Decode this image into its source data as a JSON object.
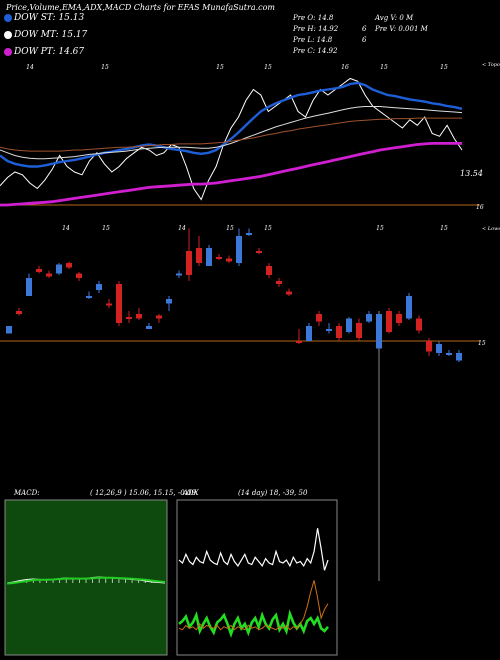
{
  "header": {
    "title": "Price,Volume,EMA,ADX,MACD Charts for EFAS MunafaSutra.com",
    "dow_st": "DOW ST: 15.13",
    "dow_mt": "DOW MT: 15.17",
    "dow_pt": "DOW PT: 14.67",
    "stats": {
      "pre_o": "Pre   O: 14.8",
      "pre_h": "Pre   H: 14.92",
      "pre_l": "Pre   L: 14.8",
      "pre_c": "Pre   C: 14.92",
      "avg_v": "Avg V: 0   M",
      "pre_v": "Pre   V: 0.001 M",
      "num_6a": "6",
      "num_6b": "6"
    }
  },
  "colors": {
    "background": "#000000",
    "ema_short": "#1e5fd8",
    "ema_long": "#d01fd0",
    "ema_mid": "#a0522d",
    "price_white": "#ffffff",
    "candle_up": "#3b78d8",
    "candle_down": "#d22222",
    "ref_line": "#b8651a",
    "macd_bg": "#0e4a0e",
    "macd_signal": "#22cc22",
    "adx_green": "#22dd22",
    "adx_orange": "#d07010",
    "adx_white": "#ffffff"
  },
  "chart_data": [
    {
      "type": "line",
      "name": "ema-panel",
      "top_tick_labels": [
        "14",
        "15",
        "15",
        "15",
        "16",
        "15",
        "15"
      ],
      "right_label_top": "< Topo",
      "ref_value_label": "16",
      "last_value_label": "13.54",
      "series": [
        {
          "name": "",
          "values": [
            0.35,
            0.5,
            0.6,
            0.55,
            0.4,
            0.3,
            0.45,
            0.65,
            0.9,
            0.7,
            0.6,
            0.55,
            0.8,
            0.95,
            0.75,
            0.6,
            0.7,
            0.85,
            0.95,
            1.05,
            1.0,
            0.9,
            0.95,
            1.1,
            1.05,
            0.7,
            0.3,
            0.1,
            0.45,
            0.7,
            1.1,
            1.4,
            1.6,
            1.9,
            2.1,
            2.0,
            1.7,
            1.8,
            1.9,
            2.0,
            1.7,
            1.6,
            1.9,
            2.1,
            2.0,
            2.1,
            2.2,
            2.3,
            2.25,
            2.0,
            1.8,
            1.7,
            1.6,
            1.5,
            1.4,
            1.55,
            1.45,
            1.6,
            1.3,
            1.25,
            1.45,
            1.2,
            1.0
          ]
        },
        {
          "name": "",
          "values": [
            0.9,
            0.8,
            0.75,
            0.72,
            0.7,
            0.7,
            0.72,
            0.75,
            0.78,
            0.8,
            0.82,
            0.85,
            0.88,
            0.92,
            0.95,
            0.97,
            1.0,
            1.02,
            1.05,
            1.08,
            1.1,
            1.08,
            1.05,
            1.02,
            1.0,
            0.98,
            0.95,
            0.93,
            0.95,
            1.0,
            1.1,
            1.2,
            1.32,
            1.45,
            1.58,
            1.7,
            1.78,
            1.85,
            1.9,
            1.95,
            2.0,
            2.02,
            2.05,
            2.08,
            2.1,
            2.12,
            2.15,
            2.2,
            2.22,
            2.18,
            2.1,
            2.05,
            2.0,
            1.98,
            1.95,
            1.92,
            1.9,
            1.88,
            1.85,
            1.83,
            1.8,
            1.78,
            1.75
          ]
        },
        {
          "name": "",
          "values": [
            1.0,
            0.95,
            0.9,
            0.87,
            0.85,
            0.84,
            0.84,
            0.85,
            0.86,
            0.87,
            0.88,
            0.9,
            0.92,
            0.93,
            0.95,
            0.96,
            0.97,
            0.98,
            1.0,
            1.02,
            1.03,
            1.04,
            1.05,
            1.05,
            1.05,
            1.05,
            1.04,
            1.03,
            1.03,
            1.05,
            1.08,
            1.12,
            1.17,
            1.22,
            1.27,
            1.32,
            1.37,
            1.42,
            1.46,
            1.5,
            1.54,
            1.58,
            1.61,
            1.64,
            1.67,
            1.7,
            1.73,
            1.76,
            1.78,
            1.79,
            1.79,
            1.79,
            1.78,
            1.77,
            1.76,
            1.75,
            1.74,
            1.73,
            1.72,
            1.71,
            1.7,
            1.69,
            1.68
          ]
        },
        {
          "name": "",
          "values": [
            1.05,
            1.02,
            1.0,
            0.99,
            0.98,
            0.98,
            0.98,
            0.98,
            0.98,
            0.99,
            1.0,
            1.0,
            1.01,
            1.02,
            1.03,
            1.04,
            1.05,
            1.05,
            1.06,
            1.07,
            1.08,
            1.09,
            1.1,
            1.1,
            1.11,
            1.11,
            1.11,
            1.11,
            1.12,
            1.13,
            1.14,
            1.16,
            1.18,
            1.2,
            1.22,
            1.25,
            1.28,
            1.3,
            1.33,
            1.35,
            1.38,
            1.4,
            1.42,
            1.44,
            1.46,
            1.48,
            1.5,
            1.52,
            1.53,
            1.54,
            1.55,
            1.56,
            1.56,
            1.57,
            1.57,
            1.57,
            1.58,
            1.58,
            1.58,
            1.58,
            1.58,
            1.58,
            1.58
          ]
        },
        {
          "name": "",
          "values": [
            0.0,
            0.0,
            0.01,
            0.02,
            0.03,
            0.04,
            0.05,
            0.06,
            0.08,
            0.1,
            0.12,
            0.14,
            0.16,
            0.18,
            0.2,
            0.22,
            0.24,
            0.26,
            0.28,
            0.3,
            0.32,
            0.33,
            0.34,
            0.35,
            0.36,
            0.37,
            0.38,
            0.38,
            0.39,
            0.4,
            0.42,
            0.44,
            0.46,
            0.48,
            0.5,
            0.52,
            0.55,
            0.58,
            0.61,
            0.64,
            0.67,
            0.7,
            0.73,
            0.76,
            0.79,
            0.82,
            0.85,
            0.88,
            0.91,
            0.94,
            0.97,
            1.0,
            1.02,
            1.04,
            1.06,
            1.08,
            1.1,
            1.11,
            1.12,
            1.12,
            1.12,
            1.12,
            1.12
          ]
        }
      ]
    },
    {
      "type": "candlestick",
      "name": "price-panel",
      "top_tick_labels": [
        "14",
        "15",
        "14",
        "15",
        "15",
        "15",
        "15"
      ],
      "right_label_top": "< Lower",
      "ref_value_label": "15",
      "candles": [
        {
          "o": 15.1,
          "h": 15.1,
          "l": 15.05,
          "c": 15.05,
          "up": true
        },
        {
          "o": 15.2,
          "h": 15.22,
          "l": 15.17,
          "c": 15.18,
          "up": false
        },
        {
          "o": 15.3,
          "h": 15.45,
          "l": 15.3,
          "c": 15.42,
          "up": true
        },
        {
          "o": 15.48,
          "h": 15.5,
          "l": 15.45,
          "c": 15.46,
          "up": false
        },
        {
          "o": 15.45,
          "h": 15.47,
          "l": 15.42,
          "c": 15.43,
          "up": false
        },
        {
          "o": 15.45,
          "h": 15.52,
          "l": 15.44,
          "c": 15.51,
          "up": true
        },
        {
          "o": 15.52,
          "h": 15.53,
          "l": 15.48,
          "c": 15.49,
          "up": false
        },
        {
          "o": 15.45,
          "h": 15.46,
          "l": 15.4,
          "c": 15.42,
          "up": false
        },
        {
          "o": 15.3,
          "h": 15.33,
          "l": 15.28,
          "c": 15.3,
          "up": true
        },
        {
          "o": 15.38,
          "h": 15.4,
          "l": 15.32,
          "c": 15.34,
          "up": true
        },
        {
          "o": 15.25,
          "h": 15.28,
          "l": 15.22,
          "c": 15.24,
          "up": false
        },
        {
          "o": 15.38,
          "h": 15.4,
          "l": 15.1,
          "c": 15.12,
          "up": false
        },
        {
          "o": 15.15,
          "h": 15.2,
          "l": 15.12,
          "c": 15.16,
          "up": false
        },
        {
          "o": 15.18,
          "h": 15.22,
          "l": 15.14,
          "c": 15.15,
          "up": false
        },
        {
          "o": 15.1,
          "h": 15.12,
          "l": 15.08,
          "c": 15.08,
          "up": true
        },
        {
          "o": 15.15,
          "h": 15.18,
          "l": 15.12,
          "c": 15.17,
          "up": false
        },
        {
          "o": 15.25,
          "h": 15.3,
          "l": 15.2,
          "c": 15.28,
          "up": true
        },
        {
          "o": 15.45,
          "h": 15.47,
          "l": 15.42,
          "c": 15.44,
          "up": true
        },
        {
          "o": 15.6,
          "h": 15.75,
          "l": 15.4,
          "c": 15.44,
          "up": false
        },
        {
          "o": 15.62,
          "h": 15.7,
          "l": 15.5,
          "c": 15.52,
          "up": false
        },
        {
          "o": 15.62,
          "h": 15.64,
          "l": 15.5,
          "c": 15.5,
          "up": true
        },
        {
          "o": 15.56,
          "h": 15.58,
          "l": 15.54,
          "c": 15.55,
          "up": false
        },
        {
          "o": 15.55,
          "h": 15.57,
          "l": 15.52,
          "c": 15.53,
          "up": false
        },
        {
          "o": 15.7,
          "h": 15.75,
          "l": 15.5,
          "c": 15.52,
          "up": true
        },
        {
          "o": 15.72,
          "h": 15.75,
          "l": 15.7,
          "c": 15.72,
          "up": true
        },
        {
          "o": 15.6,
          "h": 15.62,
          "l": 15.58,
          "c": 15.59,
          "up": false
        },
        {
          "o": 15.5,
          "h": 15.52,
          "l": 15.42,
          "c": 15.44,
          "up": false
        },
        {
          "o": 15.4,
          "h": 15.42,
          "l": 15.36,
          "c": 15.38,
          "up": false
        },
        {
          "o": 15.33,
          "h": 15.35,
          "l": 15.3,
          "c": 15.31,
          "up": false
        },
        {
          "o": 15.0,
          "h": 15.08,
          "l": 14.98,
          "c": 15.0,
          "up": false
        },
        {
          "o": 15.1,
          "h": 15.12,
          "l": 15.0,
          "c": 15.0,
          "up": true
        },
        {
          "o": 15.18,
          "h": 15.2,
          "l": 15.1,
          "c": 15.13,
          "up": false
        },
        {
          "o": 15.08,
          "h": 15.12,
          "l": 15.05,
          "c": 15.07,
          "up": true
        },
        {
          "o": 15.1,
          "h": 15.12,
          "l": 15.0,
          "c": 15.02,
          "up": false
        },
        {
          "o": 15.15,
          "h": 15.16,
          "l": 15.05,
          "c": 15.06,
          "up": true
        },
        {
          "o": 15.12,
          "h": 15.15,
          "l": 15.0,
          "c": 15.02,
          "up": false
        },
        {
          "o": 15.18,
          "h": 15.2,
          "l": 15.12,
          "c": 15.13,
          "up": true
        },
        {
          "o": 15.18,
          "h": 15.2,
          "l": 13.4,
          "c": 14.95,
          "up": true
        },
        {
          "o": 15.2,
          "h": 15.22,
          "l": 15.05,
          "c": 15.06,
          "up": false
        },
        {
          "o": 15.18,
          "h": 15.2,
          "l": 15.1,
          "c": 15.12,
          "up": false
        },
        {
          "o": 15.3,
          "h": 15.32,
          "l": 15.14,
          "c": 15.15,
          "up": true
        },
        {
          "o": 15.15,
          "h": 15.17,
          "l": 15.05,
          "c": 15.07,
          "up": false
        },
        {
          "o": 15.0,
          "h": 15.02,
          "l": 14.9,
          "c": 14.93,
          "up": false
        },
        {
          "o": 14.98,
          "h": 15.0,
          "l": 14.9,
          "c": 14.92,
          "up": true
        },
        {
          "o": 14.92,
          "h": 14.94,
          "l": 14.9,
          "c": 14.91,
          "up": true
        },
        {
          "o": 14.92,
          "h": 14.94,
          "l": 14.86,
          "c": 14.87,
          "up": true
        }
      ]
    },
    {
      "type": "line",
      "name": "macd-panel",
      "label": "MACD:",
      "params": "( 12,26,9 ) 15.06,  15.15,  -0.09",
      "series": [
        {
          "name": "",
          "values": [
            0.0,
            0.1,
            0.25,
            0.35,
            0.4,
            0.35,
            0.3,
            0.35,
            0.45,
            0.5,
            0.45,
            0.4,
            0.45,
            0.55,
            0.6,
            0.55,
            0.5,
            0.45,
            0.4,
            0.35,
            0.3,
            0.2,
            0.1,
            0.05,
            0.0
          ]
        },
        {
          "name": "",
          "values": [
            -0.05,
            0.0,
            0.1,
            0.2,
            0.3,
            0.32,
            0.33,
            0.35,
            0.4,
            0.44,
            0.45,
            0.44,
            0.44,
            0.48,
            0.52,
            0.53,
            0.52,
            0.49,
            0.46,
            0.42,
            0.38,
            0.32,
            0.24,
            0.16,
            0.1
          ]
        }
      ]
    },
    {
      "type": "line",
      "name": "adx-panel",
      "label": "ADX",
      "params": "(14 day) 18,  -39,  50",
      "series": [
        {
          "name": "",
          "values": [
            0.62,
            0.6,
            0.66,
            0.61,
            0.59,
            0.64,
            0.61,
            0.6,
            0.68,
            0.62,
            0.6,
            0.59,
            0.67,
            0.61,
            0.59,
            0.66,
            0.61,
            0.58,
            0.62,
            0.66,
            0.6,
            0.59,
            0.64,
            0.61,
            0.58,
            0.63,
            0.6,
            0.59,
            0.68,
            0.61,
            0.6,
            0.62,
            0.58,
            0.64,
            0.6,
            0.61,
            0.58,
            0.63,
            0.6,
            0.68,
            0.84,
            0.7,
            0.55,
            0.62
          ]
        },
        {
          "name": "",
          "values": [
            0.18,
            0.2,
            0.23,
            0.16,
            0.19,
            0.24,
            0.13,
            0.18,
            0.22,
            0.16,
            0.12,
            0.19,
            0.21,
            0.24,
            0.18,
            0.11,
            0.18,
            0.22,
            0.15,
            0.18,
            0.12,
            0.19,
            0.22,
            0.16,
            0.24,
            0.18,
            0.15,
            0.21,
            0.24,
            0.14,
            0.18,
            0.13,
            0.25,
            0.19,
            0.15,
            0.18,
            0.13,
            0.2,
            0.22,
            0.18,
            0.22,
            0.15,
            0.13,
            0.16
          ]
        },
        {
          "name": "",
          "values": [
            0.15,
            0.14,
            0.17,
            0.15,
            0.16,
            0.14,
            0.18,
            0.15,
            0.17,
            0.16,
            0.15,
            0.17,
            0.14,
            0.16,
            0.15,
            0.17,
            0.14,
            0.16,
            0.15,
            0.14,
            0.17,
            0.15,
            0.16,
            0.14,
            0.15,
            0.17,
            0.16,
            0.15,
            0.14,
            0.16,
            0.15,
            0.17,
            0.14,
            0.16,
            0.15,
            0.18,
            0.22,
            0.3,
            0.4,
            0.48,
            0.36,
            0.22,
            0.28,
            0.32
          ]
        }
      ]
    }
  ]
}
